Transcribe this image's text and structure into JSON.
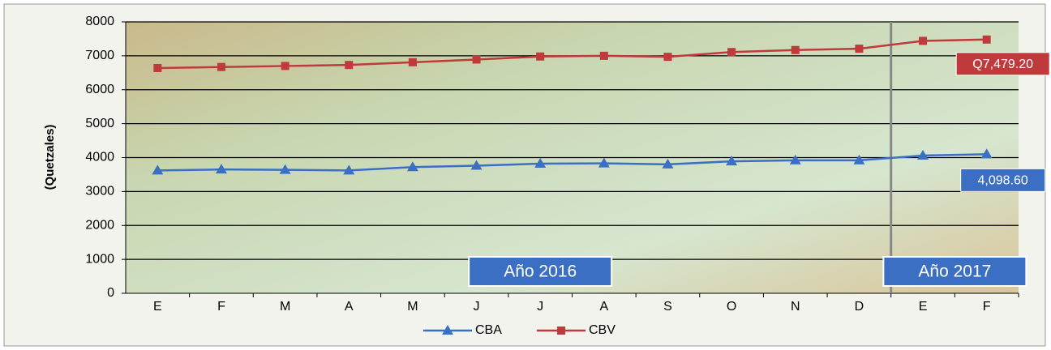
{
  "chart_data": {
    "type": "line",
    "y_label": "(Quetzales)",
    "categories": [
      "E",
      "F",
      "M",
      "A",
      "M",
      "J",
      "J",
      "A",
      "S",
      "O",
      "N",
      "D",
      "E",
      "F"
    ],
    "series": [
      {
        "name": "CBA",
        "color": "#3a6fc4",
        "marker": "triangle",
        "values": [
          3620,
          3650,
          3640,
          3620,
          3720,
          3760,
          3820,
          3830,
          3800,
          3890,
          3920,
          3920,
          4060,
          4098.6
        ],
        "value_labels": [
          null,
          null,
          null,
          null,
          null,
          null,
          null,
          null,
          null,
          null,
          null,
          null,
          null,
          "4,098.60"
        ]
      },
      {
        "name": "CBV",
        "color": "#c0393b",
        "marker": "square",
        "values": [
          6640,
          6670,
          6700,
          6730,
          6810,
          6890,
          6980,
          7000,
          6970,
          7110,
          7170,
          7210,
          7440,
          7479.2
        ],
        "value_labels": [
          null,
          null,
          null,
          null,
          null,
          null,
          null,
          null,
          null,
          null,
          null,
          null,
          null,
          "Q7,479.20"
        ]
      }
    ],
    "annotations": [
      "Año 2016",
      "Año 2017"
    ],
    "ylim": [
      0,
      8000
    ],
    "yticks": [
      0,
      1000,
      2000,
      3000,
      4000,
      5000,
      6000,
      7000,
      8000
    ],
    "grid": true
  }
}
